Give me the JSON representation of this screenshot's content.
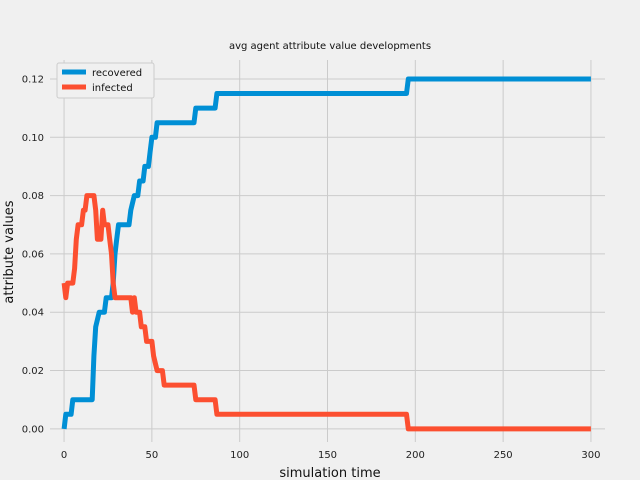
{
  "chart_data": {
    "type": "line",
    "title": "avg agent attribute value developments",
    "xlabel": "simulation time",
    "ylabel": "attribute values",
    "xlim": [
      -8,
      308
    ],
    "ylim": [
      -0.0045,
      0.1265
    ],
    "xticks": [
      0,
      50,
      100,
      150,
      200,
      250,
      300
    ],
    "yticks": [
      0.0,
      0.02,
      0.04,
      0.06,
      0.08,
      0.1,
      0.12
    ],
    "xtick_labels": [
      "0",
      "50",
      "100",
      "150",
      "200",
      "250",
      "300"
    ],
    "ytick_labels": [
      "0.00",
      "0.02",
      "0.04",
      "0.06",
      "0.08",
      "0.10",
      "0.12"
    ],
    "grid": true,
    "legend_position": "top-left",
    "series": [
      {
        "name": "recovered",
        "color": "#008fd5",
        "points": [
          [
            0,
            0.0
          ],
          [
            1,
            0.005
          ],
          [
            4,
            0.005
          ],
          [
            5,
            0.01
          ],
          [
            16,
            0.01
          ],
          [
            17,
            0.025
          ],
          [
            18,
            0.035
          ],
          [
            20,
            0.04
          ],
          [
            23,
            0.04
          ],
          [
            24,
            0.045
          ],
          [
            27,
            0.045
          ],
          [
            28,
            0.05
          ],
          [
            29,
            0.06
          ],
          [
            30,
            0.065
          ],
          [
            31,
            0.07
          ],
          [
            37,
            0.07
          ],
          [
            38,
            0.075
          ],
          [
            40,
            0.08
          ],
          [
            42,
            0.08
          ],
          [
            43,
            0.085
          ],
          [
            45,
            0.085
          ],
          [
            46,
            0.09
          ],
          [
            48,
            0.09
          ],
          [
            49,
            0.095
          ],
          [
            50,
            0.1
          ],
          [
            52,
            0.1
          ],
          [
            53,
            0.105
          ],
          [
            55,
            0.105
          ],
          [
            56,
            0.105
          ],
          [
            74,
            0.105
          ],
          [
            75,
            0.11
          ],
          [
            86,
            0.11
          ],
          [
            87,
            0.115
          ],
          [
            195,
            0.115
          ],
          [
            196,
            0.12
          ],
          [
            300,
            0.12
          ]
        ]
      },
      {
        "name": "infected",
        "color": "#fc4f30",
        "points": [
          [
            0,
            0.05
          ],
          [
            1,
            0.045
          ],
          [
            2,
            0.05
          ],
          [
            5,
            0.05
          ],
          [
            6,
            0.055
          ],
          [
            7,
            0.065
          ],
          [
            8,
            0.07
          ],
          [
            10,
            0.07
          ],
          [
            11,
            0.075
          ],
          [
            12,
            0.075
          ],
          [
            13,
            0.08
          ],
          [
            17,
            0.08
          ],
          [
            18,
            0.075
          ],
          [
            19,
            0.065
          ],
          [
            21,
            0.065
          ],
          [
            22,
            0.075
          ],
          [
            23,
            0.07
          ],
          [
            25,
            0.07
          ],
          [
            26,
            0.065
          ],
          [
            27,
            0.06
          ],
          [
            28,
            0.05
          ],
          [
            29,
            0.045
          ],
          [
            38,
            0.045
          ],
          [
            39,
            0.04
          ],
          [
            40,
            0.045
          ],
          [
            41,
            0.04
          ],
          [
            43,
            0.04
          ],
          [
            44,
            0.035
          ],
          [
            46,
            0.035
          ],
          [
            47,
            0.03
          ],
          [
            50,
            0.03
          ],
          [
            51,
            0.025
          ],
          [
            53,
            0.02
          ],
          [
            56,
            0.02
          ],
          [
            57,
            0.015
          ],
          [
            74,
            0.015
          ],
          [
            75,
            0.01
          ],
          [
            86,
            0.01
          ],
          [
            87,
            0.005
          ],
          [
            195,
            0.005
          ],
          [
            196,
            0.0
          ],
          [
            300,
            0.0
          ]
        ]
      }
    ]
  }
}
